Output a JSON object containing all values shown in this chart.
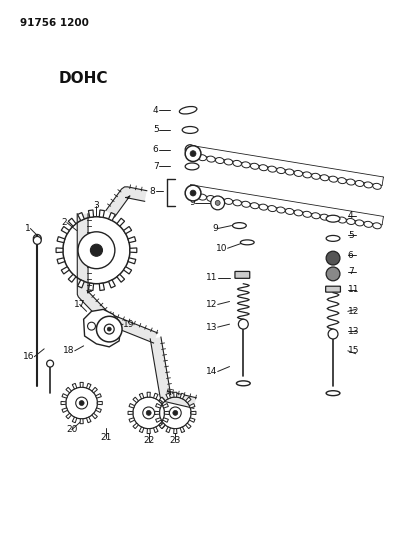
{
  "title_code": "91756 1200",
  "subtitle": "DOHC",
  "bg_color": "#ffffff",
  "line_color": "#222222",
  "text_color": "#111111",
  "fig_width": 3.93,
  "fig_height": 5.33,
  "dpi": 100
}
